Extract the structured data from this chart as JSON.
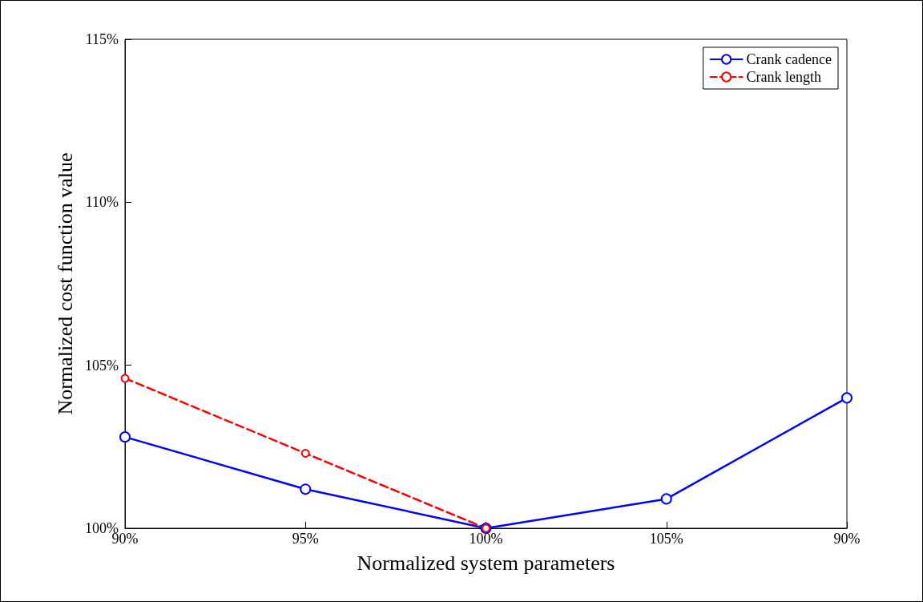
{
  "chart_data": {
    "type": "line",
    "xlabel": "Normalized system parameters",
    "ylabel": "Normalized cost function value",
    "categories": [
      "90%",
      "95%",
      "100%",
      "105%",
      "90%"
    ],
    "series": [
      {
        "name": "Crank cadence",
        "color": "#0000ff",
        "line_style": "solid",
        "values": [
          102.8,
          101.2,
          100.0,
          100.9,
          104.0
        ]
      },
      {
        "name": "Crank length",
        "color": "#ff0000",
        "line_style": "dashed",
        "values": [
          104.6,
          102.3,
          100.0,
          null,
          null
        ]
      }
    ],
    "ylim": [
      100,
      115
    ],
    "yticks": [
      {
        "value": 100,
        "label": "100%"
      },
      {
        "value": 105,
        "label": "105%"
      },
      {
        "value": 110,
        "label": "110%"
      },
      {
        "value": 115,
        "label": "115%"
      }
    ],
    "grid": false,
    "legend": "top right",
    "marker": "circle"
  }
}
